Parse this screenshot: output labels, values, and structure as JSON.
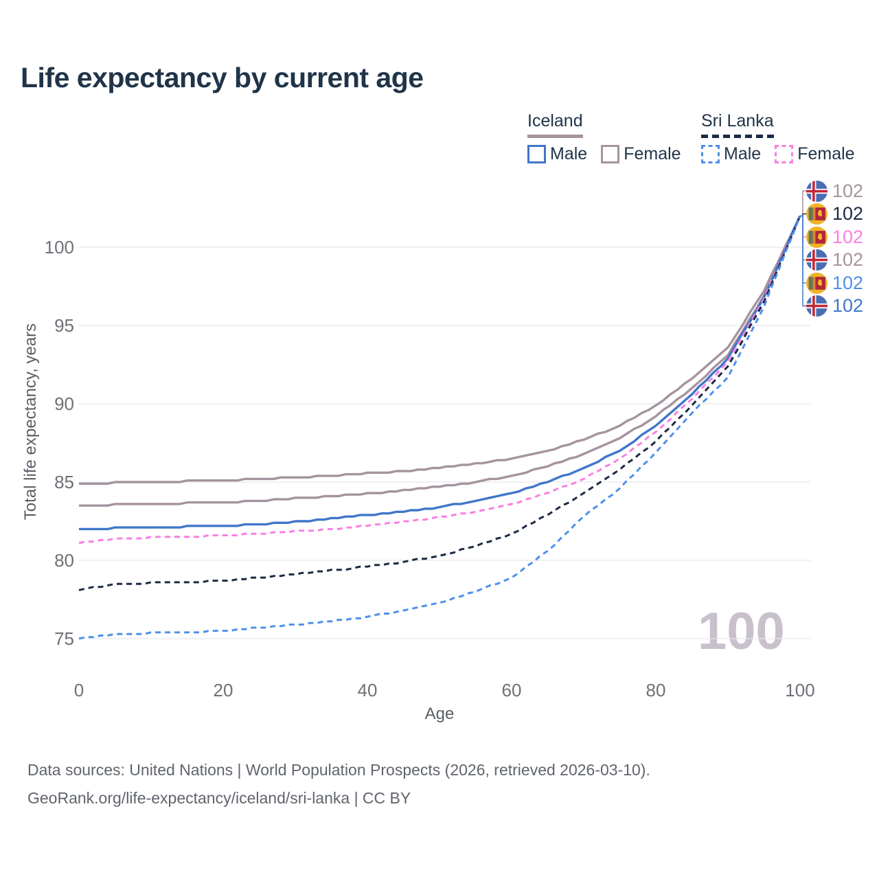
{
  "title": "Life expectancy by current age",
  "legend": {
    "groups": [
      {
        "country": "Iceland",
        "underline_style": "solid",
        "underline_color": "#a5939f",
        "items": [
          {
            "label": "Male",
            "color": "#3f76c9",
            "dashed": false
          },
          {
            "label": "Female",
            "color": "#a5939f",
            "dashed": false
          }
        ]
      },
      {
        "country": "Sri Lanka",
        "underline_style": "dashed",
        "underline_color": "#1b2a44",
        "items": [
          {
            "label": "Male",
            "color": "#4f90ea",
            "dashed": true
          },
          {
            "label": "Female",
            "color": "#f87fe2",
            "dashed": true
          }
        ]
      }
    ]
  },
  "axes": {
    "y_title": "Total life expectancy, years",
    "x_title": "Age"
  },
  "watermark": {
    "age_counter": "100"
  },
  "end_labels": [
    {
      "flag": "iceland",
      "value": "102",
      "color": "#a5939f"
    },
    {
      "flag": "sri-lanka",
      "value": "102",
      "color": "#1b2a44"
    },
    {
      "flag": "sri-lanka",
      "value": "102",
      "color": "#f87fe2"
    },
    {
      "flag": "iceland",
      "value": "102",
      "color": "#a5939f"
    },
    {
      "flag": "sri-lanka",
      "value": "102",
      "color": "#4f90ea"
    },
    {
      "flag": "iceland",
      "value": "102",
      "color": "#3f76c9"
    }
  ],
  "footer": {
    "line1": "Data sources: United Nations | World Population Prospects (2026, retrieved 2026-03-10).",
    "line2": "GeoRank.org/life-expectancy/iceland/sri-lanka | CC BY"
  },
  "colors": {
    "title_text": "#203449",
    "axis_text": "#6d7076",
    "gridline": "#e8e8ec",
    "watermark": "#c8c1cc",
    "iceland_male": "#3f76c9",
    "iceland_female": "#a5939f",
    "sri_lanka_male": "#4f90ea",
    "sri_lanka_female": "#f87fe2",
    "sri_lanka_all": "#1b2a44"
  },
  "chart_data": {
    "type": "line",
    "title": "Life expectancy by current age",
    "xlabel": "Age",
    "ylabel": "Total life expectancy, years",
    "x_ticks": [
      0,
      20,
      40,
      60,
      80,
      100
    ],
    "y_ticks": [
      75,
      80,
      85,
      90,
      95,
      100
    ],
    "xlim": [
      0,
      100
    ],
    "ylim": [
      74.5,
      102.5
    ],
    "grid": "horizontal only",
    "legend_position": "top-right",
    "ages": [
      0,
      5,
      10,
      15,
      20,
      25,
      30,
      35,
      40,
      45,
      50,
      55,
      60,
      65,
      70,
      75,
      80,
      85,
      90,
      95,
      100
    ],
    "series": [
      {
        "key": "iceland-female",
        "name": "Iceland — Female",
        "country": "Iceland",
        "sex": "female",
        "color": "#a5939f",
        "dash": false,
        "end_label": "102",
        "values": [
          84.9,
          84.95,
          85.0,
          85.05,
          85.1,
          85.2,
          85.3,
          85.4,
          85.55,
          85.7,
          85.9,
          86.15,
          86.5,
          87.0,
          87.7,
          88.6,
          89.9,
          91.6,
          93.6,
          97.2,
          102
        ]
      },
      {
        "key": "iceland-all",
        "name": "Iceland — Both sexes",
        "country": "Iceland",
        "sex": "all",
        "color": "#a5939f",
        "dash": false,
        "end_label": "102",
        "values": [
          83.5,
          83.55,
          83.6,
          83.65,
          83.7,
          83.8,
          83.95,
          84.1,
          84.25,
          84.45,
          84.7,
          85.0,
          85.4,
          86.0,
          86.8,
          87.8,
          89.2,
          91.0,
          93.1,
          96.9,
          102
        ]
      },
      {
        "key": "iceland-male",
        "name": "Iceland — Male",
        "country": "Iceland",
        "sex": "male",
        "color": "#3f76c9",
        "dash": false,
        "end_label": "102",
        "values": [
          82.0,
          82.05,
          82.1,
          82.15,
          82.2,
          82.3,
          82.45,
          82.65,
          82.9,
          83.1,
          83.4,
          83.8,
          84.3,
          85.0,
          85.9,
          87.0,
          88.6,
          90.6,
          92.9,
          96.8,
          102
        ]
      },
      {
        "key": "srilanka-female",
        "name": "Sri Lanka — Female",
        "country": "Sri Lanka",
        "sex": "female",
        "color": "#f87fe2",
        "dash": true,
        "end_label": "102",
        "values": [
          81.1,
          81.4,
          81.45,
          81.5,
          81.6,
          81.7,
          81.85,
          82.0,
          82.2,
          82.45,
          82.75,
          83.1,
          83.6,
          84.3,
          85.2,
          86.5,
          88.2,
          90.3,
          92.7,
          96.7,
          102
        ]
      },
      {
        "key": "srilanka-all",
        "name": "Sri Lanka — Both sexes",
        "country": "Sri Lanka",
        "sex": "all",
        "color": "#1b2a44",
        "dash": true,
        "end_label": "102",
        "values": [
          78.1,
          78.5,
          78.55,
          78.6,
          78.7,
          78.9,
          79.1,
          79.35,
          79.6,
          79.9,
          80.3,
          80.9,
          81.7,
          82.9,
          84.3,
          85.8,
          87.6,
          89.9,
          92.4,
          96.5,
          102
        ]
      },
      {
        "key": "srilanka-male",
        "name": "Sri Lanka — Male",
        "country": "Sri Lanka",
        "sex": "male",
        "color": "#4f90ea",
        "dash": true,
        "end_label": "102",
        "values": [
          75.0,
          75.3,
          75.35,
          75.4,
          75.5,
          75.7,
          75.9,
          76.1,
          76.4,
          76.8,
          77.3,
          78.0,
          78.9,
          80.6,
          82.8,
          84.6,
          86.9,
          89.4,
          91.7,
          96.2,
          102
        ]
      }
    ]
  }
}
